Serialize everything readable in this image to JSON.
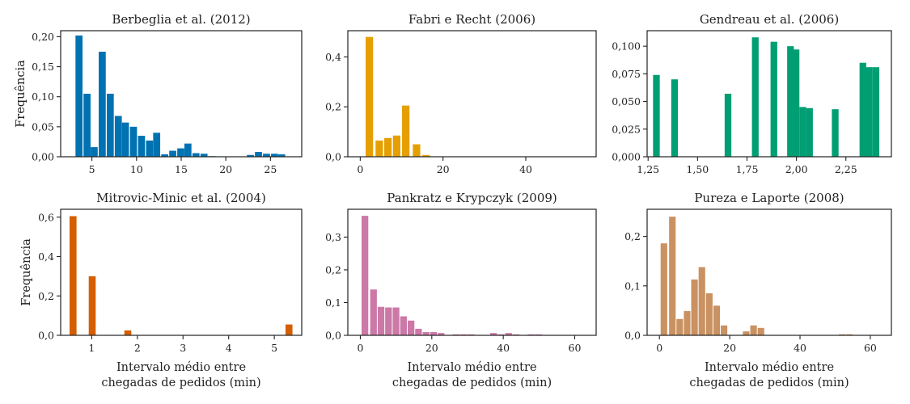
{
  "figure": {
    "ylabel": "Frequência",
    "xlabel_lines": [
      "Intervalo médio entre",
      "chegadas de pedidos (min)"
    ]
  },
  "chart_data": [
    {
      "type": "bar",
      "title": "Berbeglia et al. (2012)",
      "color": "#0072b2",
      "xlim": [
        1.5,
        28.5
      ],
      "ylim": [
        0,
        0.21
      ],
      "xticks": [
        5,
        10,
        15,
        20,
        25
      ],
      "xtick_labels": [
        "5",
        "10",
        "15",
        "20",
        "25"
      ],
      "yticks": [
        0,
        0.05,
        0.1,
        0.15,
        0.2
      ],
      "ytick_labels": [
        "0,00",
        "0,05",
        "0,10",
        "0,15",
        "0,20"
      ],
      "bin_width": 0.88,
      "x": [
        3.6,
        4.5,
        5.3,
        6.2,
        7.1,
        8.0,
        8.8,
        9.7,
        10.6,
        11.5,
        12.3,
        13.2,
        14.1,
        15.0,
        15.8,
        16.7,
        17.6,
        18.5,
        19.3,
        20.2,
        21.1,
        22.0,
        22.8,
        23.7,
        24.6,
        25.5,
        26.3,
        27.2
      ],
      "values": [
        0.202,
        0.105,
        0.016,
        0.175,
        0.105,
        0.068,
        0.057,
        0.05,
        0.035,
        0.027,
        0.04,
        0.004,
        0.01,
        0.014,
        0.022,
        0.006,
        0.005,
        0.001,
        0.0,
        0.0,
        0.0,
        0.0,
        0.003,
        0.008,
        0.005,
        0.005,
        0.004,
        0.0
      ],
      "ylabel": "Frequência",
      "xlabel": ""
    },
    {
      "type": "bar",
      "title": "Fabri e Recht (2006)",
      "color": "#e69f00",
      "xlim": [
        -3,
        57
      ],
      "ylim": [
        0,
        0.505
      ],
      "xticks": [
        0,
        20,
        40
      ],
      "xtick_labels": [
        "0",
        "20",
        "40"
      ],
      "yticks": [
        0,
        0.2,
        0.4
      ],
      "ytick_labels": [
        "0,0",
        "0,2",
        "0,4"
      ],
      "bin_width": 2.0,
      "x": [
        2.3,
        4.7,
        6.8,
        8.9,
        11.1,
        13.7,
        16.0
      ],
      "values": [
        0.48,
        0.065,
        0.075,
        0.085,
        0.205,
        0.05,
        0.007
      ],
      "ylabel": "",
      "xlabel": ""
    },
    {
      "type": "bar",
      "title": "Gendreau et al. (2006)",
      "color": "#009e73",
      "xlim": [
        1.245,
        2.48
      ],
      "ylim": [
        0,
        0.114
      ],
      "xticks": [
        1.25,
        1.5,
        1.75,
        2.0,
        2.25
      ],
      "xtick_labels": [
        "1,25",
        "1,50",
        "1,75",
        "2,00",
        "2,25"
      ],
      "yticks": [
        0,
        0.025,
        0.05,
        0.075,
        0.1
      ],
      "ytick_labels": [
        "0,000",
        "0,025",
        "0,050",
        "0,075",
        "0,100"
      ],
      "bin_width": 0.038,
      "x": [
        1.294,
        1.386,
        1.656,
        1.794,
        1.888,
        1.972,
        2.0,
        2.034,
        2.068,
        2.198,
        2.338,
        2.37,
        2.404
      ],
      "values": [
        0.074,
        0.07,
        0.057,
        0.108,
        0.104,
        0.1,
        0.097,
        0.045,
        0.044,
        0.043,
        0.085,
        0.081,
        0.081
      ],
      "ylabel": "",
      "xlabel": ""
    },
    {
      "type": "bar",
      "title": "Mitrovic-Minic et al. (2004)",
      "color": "#d55e00",
      "xlim": [
        0.32,
        5.6
      ],
      "ylim": [
        0,
        0.64
      ],
      "xticks": [
        1,
        2,
        3,
        4,
        5
      ],
      "xtick_labels": [
        "1",
        "2",
        "3",
        "4",
        "5"
      ],
      "yticks": [
        0,
        0.2,
        0.4,
        0.6
      ],
      "ytick_labels": [
        "0,0",
        "0,2",
        "0,4",
        "0,6"
      ],
      "bin_width": 0.17,
      "x": [
        0.6,
        1.02,
        1.8,
        5.33
      ],
      "values": [
        0.605,
        0.3,
        0.025,
        0.055
      ],
      "ylabel": "Frequência",
      "xlabel": "Intervalo médio entre chegadas de pedidos (min)"
    },
    {
      "type": "bar",
      "title": "Pankratz e Krypczyk (2009)",
      "color": "#cc79a7",
      "xlim": [
        -3.5,
        66
      ],
      "ylim": [
        0,
        0.385
      ],
      "xticks": [
        0,
        20,
        40,
        60
      ],
      "xtick_labels": [
        "0",
        "20",
        "40",
        "60"
      ],
      "yticks": [
        0,
        0.1,
        0.2,
        0.3
      ],
      "ytick_labels": [
        "0,0",
        "0,1",
        "0,2",
        "0,3"
      ],
      "bin_width": 2.1,
      "x": [
        1.4,
        3.8,
        5.9,
        8.0,
        10.1,
        12.2,
        14.3,
        16.4,
        18.5,
        20.6,
        22.7,
        24.8,
        26.9,
        29.0,
        31.1,
        33.2,
        35.3,
        37.4,
        39.5,
        41.6,
        43.7,
        45.8,
        47.9,
        50.0
      ],
      "values": [
        0.365,
        0.14,
        0.087,
        0.085,
        0.085,
        0.058,
        0.045,
        0.02,
        0.01,
        0.01,
        0.007,
        0.0,
        0.003,
        0.003,
        0.003,
        0.0,
        0.0,
        0.007,
        0.003,
        0.007,
        0.003,
        0.0,
        0.003,
        0.003
      ],
      "ylabel": "",
      "xlabel": "Intervalo médio entre chegadas de pedidos (min)"
    },
    {
      "type": "bar",
      "title": "Pureza e Laporte (2008)",
      "color": "#ca9161",
      "xlim": [
        -3.5,
        66
      ],
      "ylim": [
        0,
        0.255
      ],
      "xticks": [
        0,
        20,
        40,
        60
      ],
      "xtick_labels": [
        "0",
        "20",
        "40",
        "60"
      ],
      "yticks": [
        0,
        0.1,
        0.2
      ],
      "ytick_labels": [
        "0,0",
        "0,1",
        "0,2"
      ],
      "bin_width": 2.1,
      "x": [
        1.4,
        3.8,
        5.9,
        8.0,
        10.1,
        12.2,
        14.3,
        16.4,
        18.5,
        20.6,
        22.7,
        24.8,
        26.9,
        29.0,
        31.1,
        33.2,
        35.3,
        37.4,
        39.5,
        41.6,
        43.7,
        45.8,
        47.9,
        50.0,
        52.1,
        54.2
      ],
      "values": [
        0.186,
        0.24,
        0.033,
        0.049,
        0.113,
        0.138,
        0.085,
        0.06,
        0.02,
        0.0,
        0.0,
        0.008,
        0.02,
        0.015,
        0.0,
        0.0,
        0.0,
        0.0,
        0.0,
        0.0,
        0.0,
        0.0,
        0.0,
        0.0,
        0.002,
        0.002
      ],
      "ylabel": "",
      "xlabel": "Intervalo médio entre chegadas de pedidos (min)"
    }
  ]
}
